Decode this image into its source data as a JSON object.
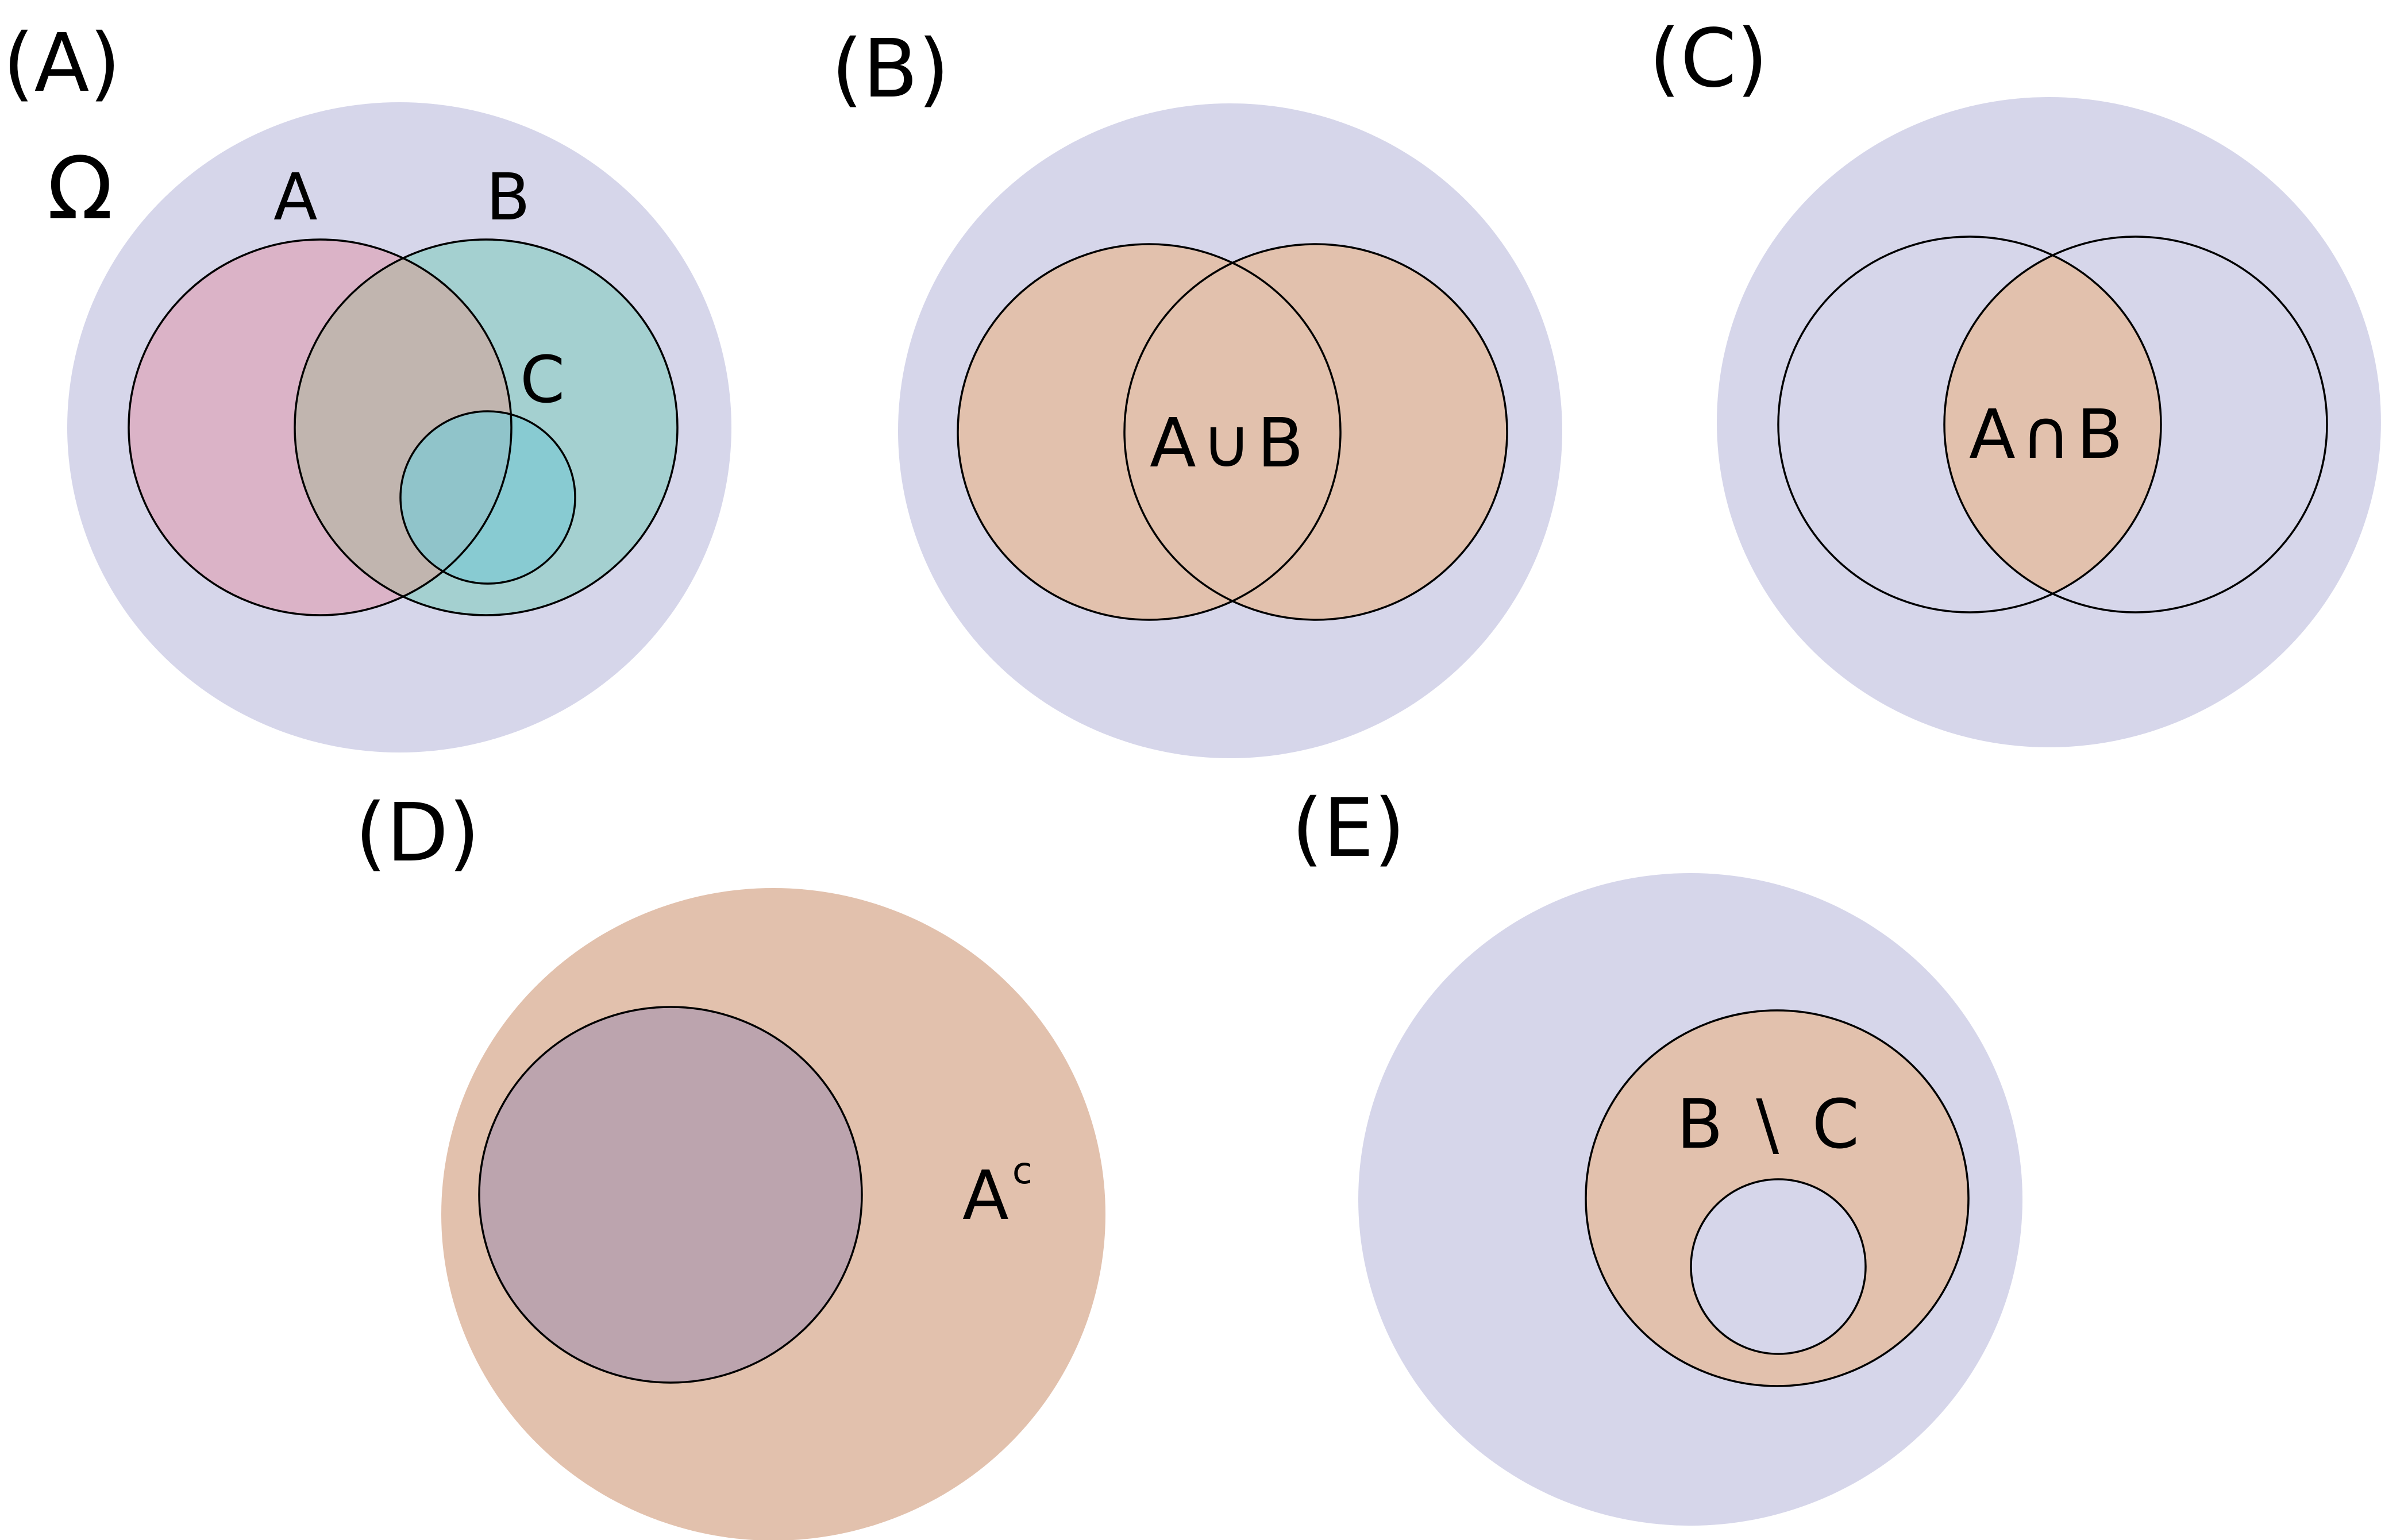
{
  "colors": {
    "universe": "#d6d6ea",
    "set_a": "#dbb3c7",
    "set_b": "#a4d0d0",
    "a_and_b": "#c1b5af",
    "set_c": "#7fc9d3",
    "highlight": "#e2c1ad",
    "a_in_complement_panel": "#bca4ae",
    "outline": "#000000"
  },
  "panels": {
    "a": {
      "label": "(A)",
      "universe_label": "Ω",
      "set_a_label": "A",
      "set_b_label": "B",
      "set_c_label": "C"
    },
    "b": {
      "label": "(B)",
      "operation": "A∪B"
    },
    "c": {
      "label": "(C)",
      "operation": "A∩B"
    },
    "d": {
      "label": "(D)",
      "operation_base": "A",
      "operation_sup": "c"
    },
    "e": {
      "label": "(E)",
      "operation": "B \\ C"
    }
  }
}
